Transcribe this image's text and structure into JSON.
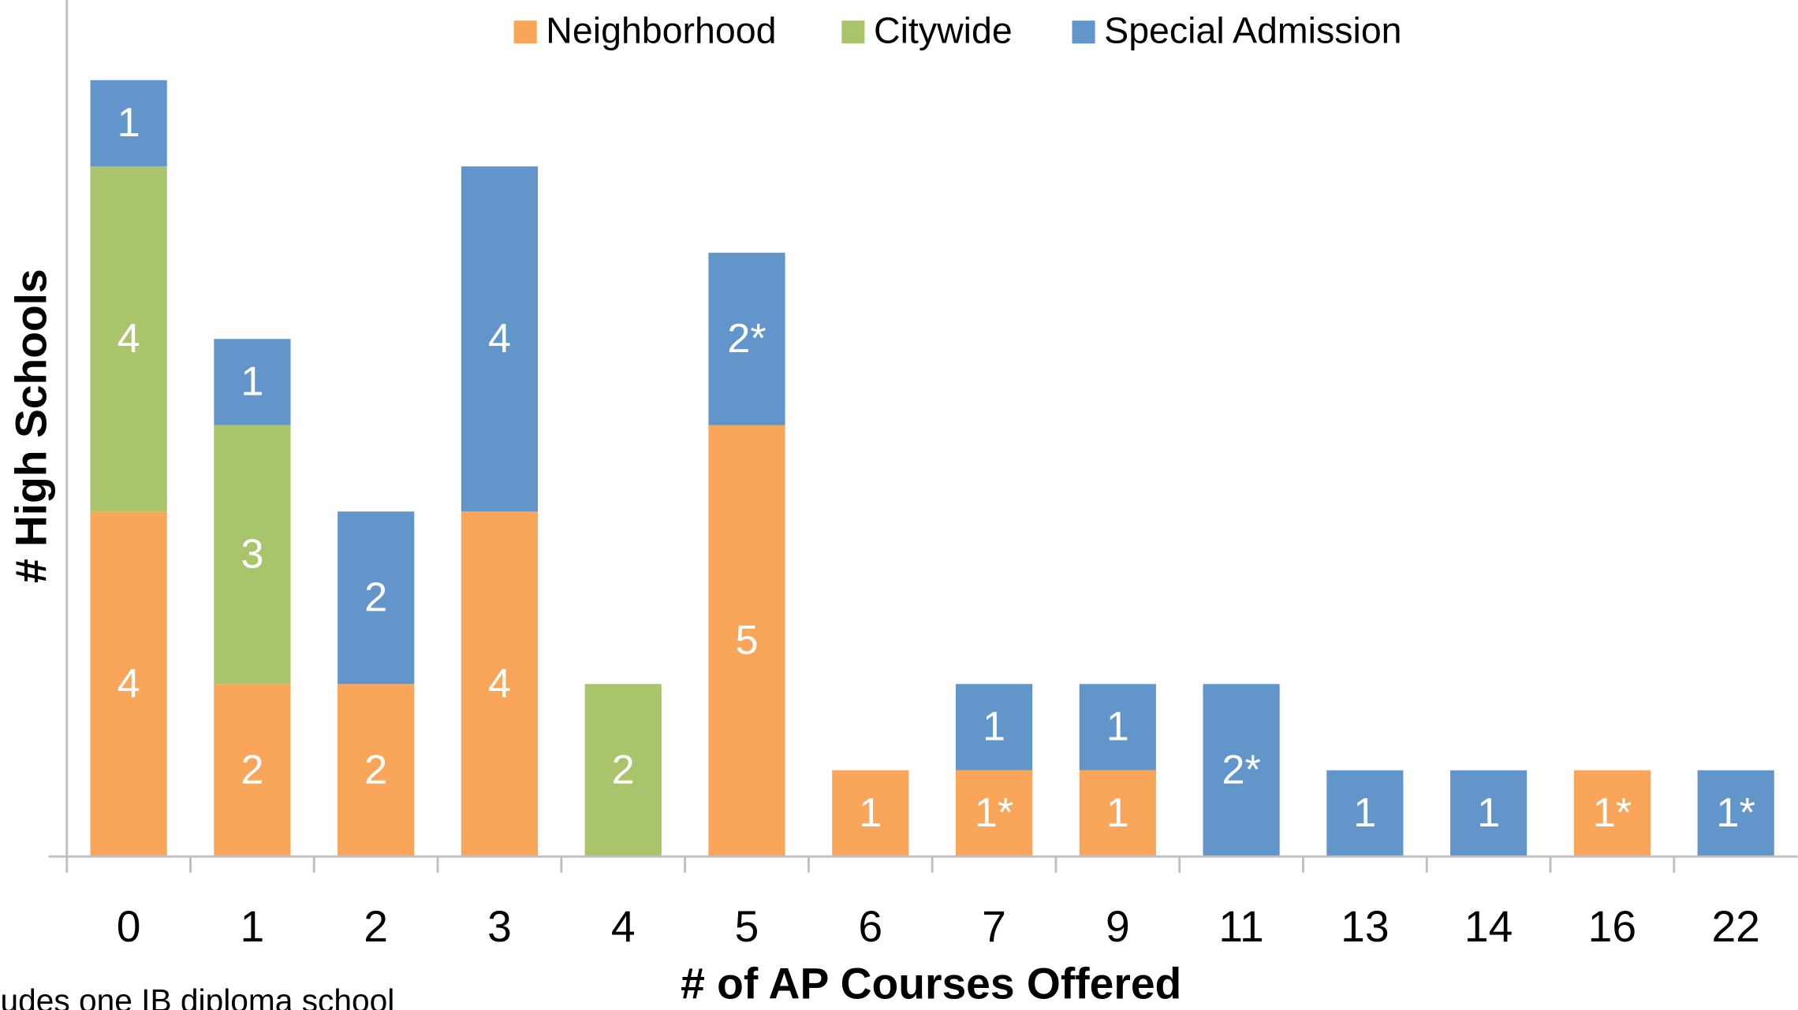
{
  "chart_data": {
    "type": "stacked-bar",
    "x_label": "# of AP Courses Offered",
    "y_label": "# High Schools",
    "footnote": "udes one IB diploma school",
    "categories": [
      "0",
      "1",
      "2",
      "3",
      "4",
      "5",
      "6",
      "7",
      "9",
      "11",
      "13",
      "14",
      "16",
      "22"
    ],
    "ylim": [
      0,
      9
    ],
    "legend": "top",
    "series": [
      {
        "name": "Neighborhood",
        "color": "#f9a55a",
        "values": [
          4,
          2,
          2,
          4,
          null,
          5,
          1,
          1,
          1,
          null,
          null,
          null,
          1,
          null
        ],
        "value_labels": [
          "4",
          "2",
          "2",
          "4",
          null,
          "5",
          "1",
          "1*",
          "1",
          null,
          null,
          null,
          "1*",
          null
        ]
      },
      {
        "name": "Citywide",
        "color": "#a9c46b",
        "values": [
          4,
          3,
          null,
          null,
          2,
          null,
          null,
          null,
          null,
          null,
          null,
          null,
          null,
          null
        ],
        "value_labels": [
          "4",
          "3",
          null,
          null,
          "2",
          null,
          null,
          null,
          null,
          null,
          null,
          null,
          null,
          null
        ]
      },
      {
        "name": "Special Admission",
        "color": "#6295c9",
        "values": [
          1,
          1,
          2,
          4,
          null,
          2,
          null,
          1,
          1,
          2,
          1,
          1,
          null,
          1
        ],
        "value_labels": [
          "1",
          "1",
          "2",
          "4",
          null,
          "2*",
          null,
          "1",
          "1",
          "2*",
          "1",
          "1",
          null,
          "1*"
        ]
      }
    ]
  }
}
